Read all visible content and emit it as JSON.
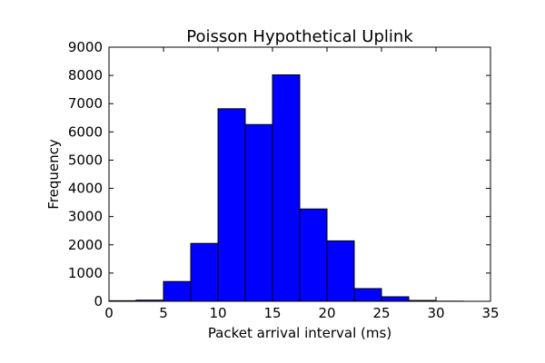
{
  "chart_data": {
    "type": "bar",
    "title": "Poisson Hypothetical Uplink",
    "xlabel": "Packet arrival interval (ms)",
    "ylabel": "Frequency",
    "xlim": [
      0,
      35
    ],
    "ylim": [
      0,
      9000
    ],
    "xticks": [
      "0",
      "5",
      "10",
      "15",
      "20",
      "25",
      "30",
      "35"
    ],
    "yticks": [
      "0",
      "1000",
      "2000",
      "3000",
      "4000",
      "5000",
      "6000",
      "7000",
      "8000",
      "9000"
    ],
    "bin_edges": [
      0,
      2.5,
      5,
      7.5,
      10,
      12.5,
      15,
      17.5,
      20,
      22.5,
      25,
      27.5,
      30,
      32.5,
      35
    ],
    "values": [
      20,
      40,
      700,
      2050,
      6820,
      6260,
      8020,
      3270,
      2140,
      450,
      160,
      30,
      5,
      0
    ],
    "bar_color": "#0000ff",
    "edge_color": "#000000",
    "grid": false
  }
}
